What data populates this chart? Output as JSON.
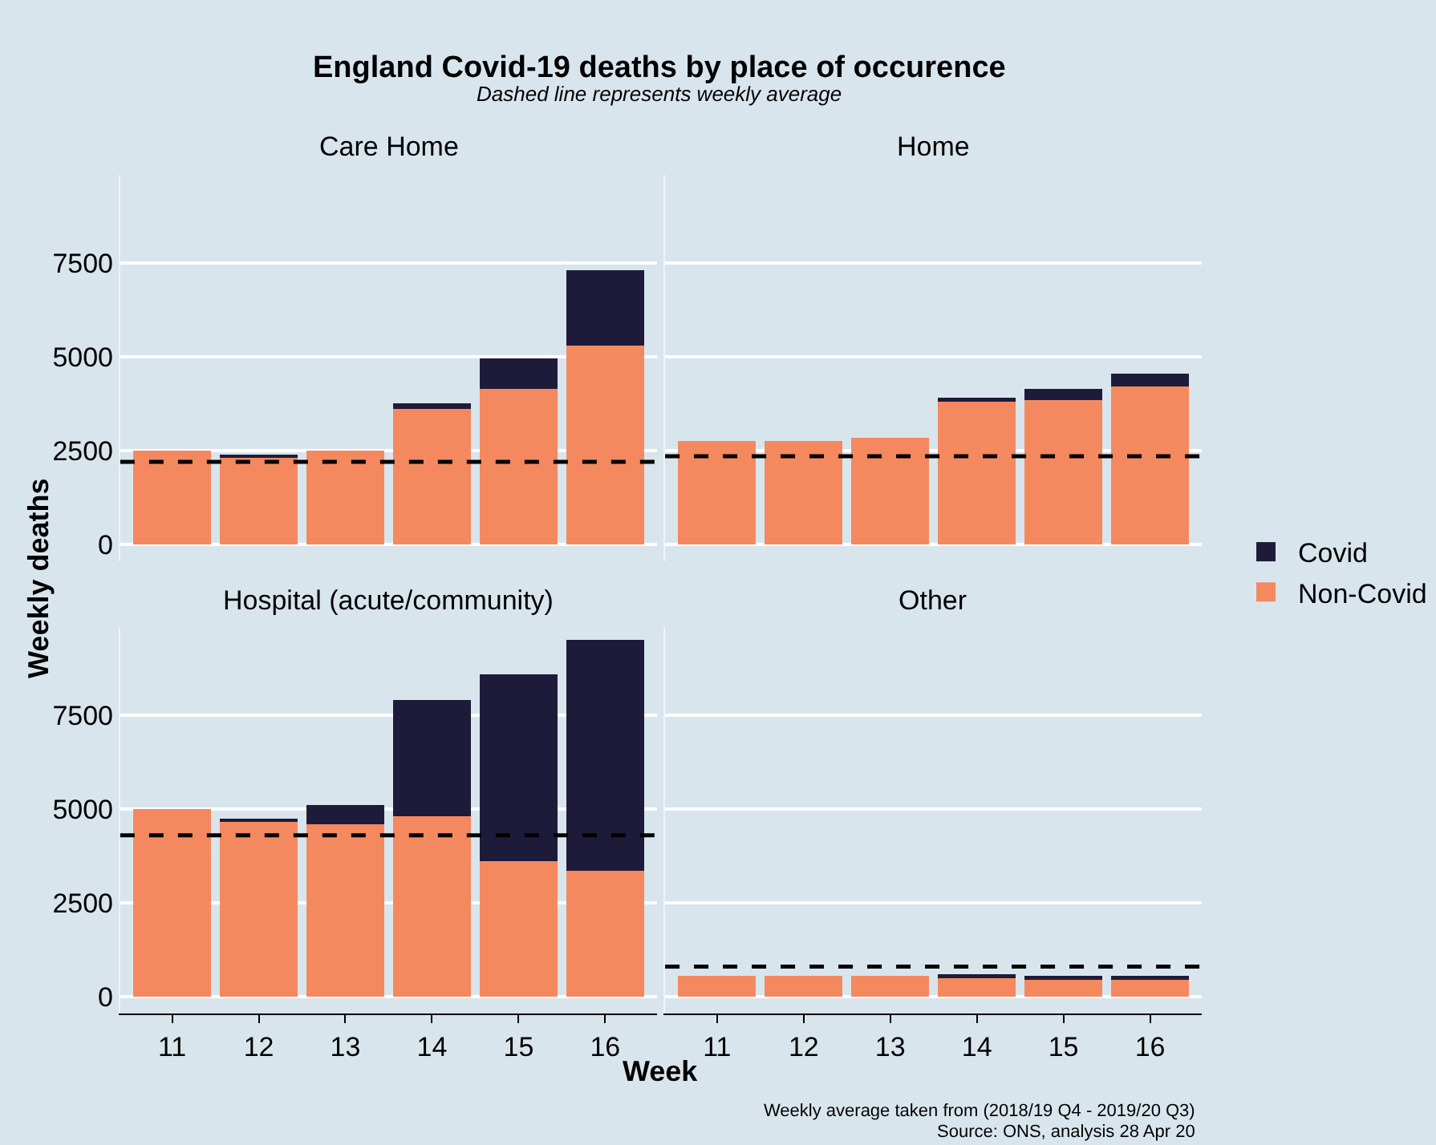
{
  "chart_data": [
    {
      "type": "bar",
      "stacked": true,
      "title": "England Covid-19 deaths by place of occurence",
      "subtitle": "Dashed line represents weekly average",
      "ylabel": "Weekly deaths",
      "legend": "right",
      "grid": "y",
      "tick_labels": "y",
      "categories": [
        "11",
        "12",
        "13",
        "14",
        "15",
        "16"
      ],
      "series": [
        {
          "name": "Non-Covid",
          "color": "#f4895f",
          "values": [
            2500,
            2300,
            2500,
            3600,
            4150,
            5300
          ]
        },
        {
          "name": "Covid",
          "color": "#1e1b3a",
          "values": [
            0,
            100,
            0,
            150,
            800,
            2000
          ]
        }
      ],
      "ylim": [
        -450,
        9850
      ],
      "yticks": [
        0,
        2500,
        5000,
        7500
      ],
      "ref_lines": [
        {
          "axis": "y",
          "value": 2200,
          "line_style": "dashed",
          "color": "#000000"
        }
      ],
      "annotations": [
        "Care Home",
        "Weekly average taken from (2018/19 Q4 - 2019/20 Q3)",
        "Source: ONS, analysis 28 Apr 20"
      ]
    },
    {
      "type": "bar",
      "stacked": true,
      "grid": "y",
      "tick_labels": false,
      "categories": [
        "11",
        "12",
        "13",
        "14",
        "15",
        "16"
      ],
      "series": [
        {
          "color": "#f4895f",
          "values": [
            2750,
            2750,
            2850,
            3800,
            3850,
            4200
          ]
        },
        {
          "color": "#1e1b3a",
          "values": [
            0,
            0,
            0,
            100,
            300,
            350
          ]
        }
      ],
      "ylim": [
        -450,
        9850
      ],
      "yticks": [
        0,
        2500,
        5000,
        7500
      ],
      "ref_lines": [
        {
          "axis": "y",
          "value": 2350,
          "line_style": "dashed",
          "color": "#000000"
        }
      ],
      "annotations": [
        "Home"
      ]
    },
    {
      "type": "bar",
      "stacked": true,
      "xlabel": "Week",
      "grid": "y",
      "categories": [
        "11",
        "12",
        "13",
        "14",
        "15",
        "16"
      ],
      "series": [
        {
          "color": "#f4895f",
          "values": [
            5000,
            4650,
            4600,
            4800,
            3600,
            3350
          ]
        },
        {
          "color": "#1e1b3a",
          "values": [
            0,
            100,
            500,
            3100,
            5000,
            6150
          ]
        }
      ],
      "ylim": [
        -450,
        9850
      ],
      "yticks": [
        0,
        2500,
        5000,
        7500
      ],
      "ref_lines": [
        {
          "axis": "y",
          "value": 4300,
          "line_style": "dashed",
          "color": "#000000"
        }
      ],
      "annotations": [
        "Hospital (acute/community)"
      ]
    },
    {
      "type": "bar",
      "stacked": true,
      "grid": "y",
      "tick_labels": "x",
      "categories": [
        "11",
        "12",
        "13",
        "14",
        "15",
        "16"
      ],
      "series": [
        {
          "color": "#f4895f",
          "values": [
            550,
            550,
            550,
            500,
            450,
            450
          ]
        },
        {
          "color": "#1e1b3a",
          "values": [
            0,
            0,
            0,
            100,
            100,
            100
          ]
        }
      ],
      "ylim": [
        -450,
        9850
      ],
      "yticks": [
        0,
        2500,
        5000,
        7500
      ],
      "ref_lines": [
        {
          "axis": "y",
          "value": 800,
          "line_style": "dashed",
          "color": "#000000"
        }
      ],
      "annotations": [
        "Other"
      ]
    }
  ]
}
